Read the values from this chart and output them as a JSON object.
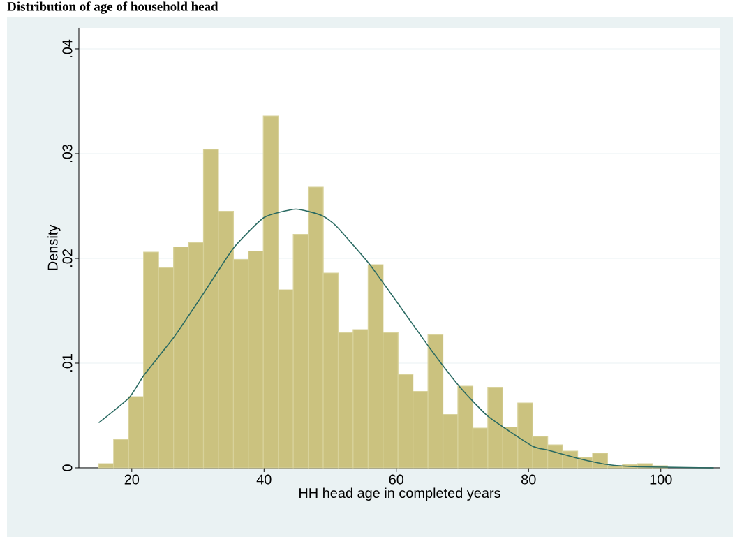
{
  "chart_data": {
    "type": "histogram",
    "title": "Distribution of age of household head",
    "xlabel": "HH head age in completed years",
    "ylabel": "Density",
    "bins": [
      15.0,
      17.26,
      19.53,
      21.79,
      24.05,
      26.32,
      28.58,
      30.84,
      33.11,
      35.37,
      37.63,
      39.89,
      42.16,
      44.42,
      46.68,
      48.95,
      51.21,
      53.47,
      55.74,
      58.0,
      60.26,
      62.52,
      64.79,
      67.05,
      69.31,
      71.58,
      73.84,
      76.1,
      78.37,
      80.63,
      82.89,
      85.15,
      87.42,
      89.68,
      91.94,
      94.21,
      96.47,
      98.73,
      101.0
    ],
    "values": [
      0.0004,
      0.0027,
      0.0068,
      0.0206,
      0.0191,
      0.0211,
      0.0215,
      0.0304,
      0.0245,
      0.0199,
      0.0207,
      0.0336,
      0.017,
      0.0223,
      0.0268,
      0.0186,
      0.0129,
      0.0132,
      0.0194,
      0.0129,
      0.0089,
      0.0073,
      0.0127,
      0.0051,
      0.0078,
      0.0038,
      0.0077,
      0.0039,
      0.0062,
      0.003,
      0.0022,
      0.0016,
      0.001,
      0.0014,
      0.0002,
      0.0003,
      0.0004,
      0.0002
    ],
    "color": "#cbc27f",
    "series": [
      {
        "type": "line",
        "color": "#2a6a62",
        "x": [
          15.0,
          19.6,
          21.9,
          26.4,
          30.9,
          35.4,
          40.0,
          44.8,
          48.7,
          50.9,
          56.0,
          60.8,
          65.1,
          69.5,
          73.9,
          80.5,
          82.9,
          87.5,
          92.1,
          96.7,
          108.0
        ],
        "values": [
          0.0043,
          0.0067,
          0.0089,
          0.0125,
          0.0167,
          0.021,
          0.0239,
          0.0247,
          0.0241,
          0.0231,
          0.0194,
          0.0152,
          0.0114,
          0.0078,
          0.0049,
          0.0021,
          0.0017,
          0.0009,
          0.0003,
          0.0001,
          0.0
        ]
      }
    ],
    "xlim": [
      12,
      109
    ],
    "ylim": [
      0,
      0.042
    ],
    "xticks": [
      20,
      40,
      60,
      80,
      100
    ],
    "yticks": [
      0,
      {
        "value": 0.01,
        "label": ".01"
      },
      {
        "value": 0.02,
        "label": ".02"
      },
      {
        "value": 0.03,
        "label": ".03"
      },
      {
        "value": 0.04,
        "label": ".04"
      }
    ],
    "grid": "y"
  }
}
